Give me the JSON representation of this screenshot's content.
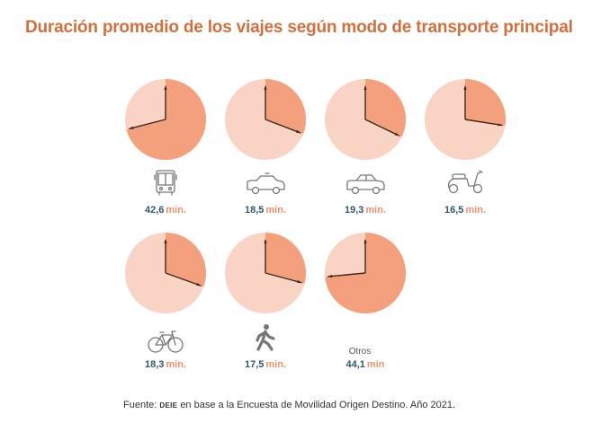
{
  "chart_data": {
    "type": "pie",
    "title": "Duración promedio de los viajes según modo de transporte principal",
    "scale_minutes": 60,
    "unit": "min.",
    "colors": {
      "filled": "#f4a07c",
      "empty": "#f9d3c4",
      "hands": "#3a2a20",
      "value_text": "#2f5966",
      "unit_text": "#e8946a",
      "title": "#d0703f"
    },
    "series": [
      {
        "name": "Colectivo",
        "icon": "bus-icon",
        "value": 42.6,
        "label": "42,6",
        "unit": "min."
      },
      {
        "name": "Taxi/Remis",
        "icon": "taxi-icon",
        "value": 18.5,
        "label": "18,5",
        "unit": "min."
      },
      {
        "name": "Auto",
        "icon": "car-icon",
        "value": 19.3,
        "label": "19,3",
        "unit": "min."
      },
      {
        "name": "Moto",
        "icon": "scooter-icon",
        "value": 16.5,
        "label": "16,5",
        "unit": "min."
      },
      {
        "name": "Bicicleta",
        "icon": "bicycle-icon",
        "value": 18.3,
        "label": "18,3",
        "unit": "min."
      },
      {
        "name": "A pie",
        "icon": "walking-icon",
        "value": 17.5,
        "label": "17,5",
        "unit": "min."
      },
      {
        "name": "Otros",
        "icon": null,
        "value": 44.1,
        "label": "44,1",
        "unit": "min",
        "text_label": "Otros"
      }
    ]
  },
  "source": {
    "prefix": "Fuente:",
    "org": "DEIE",
    "text": "en base a la Encuesta de Movilidad Origen Destino. Año 2021."
  }
}
